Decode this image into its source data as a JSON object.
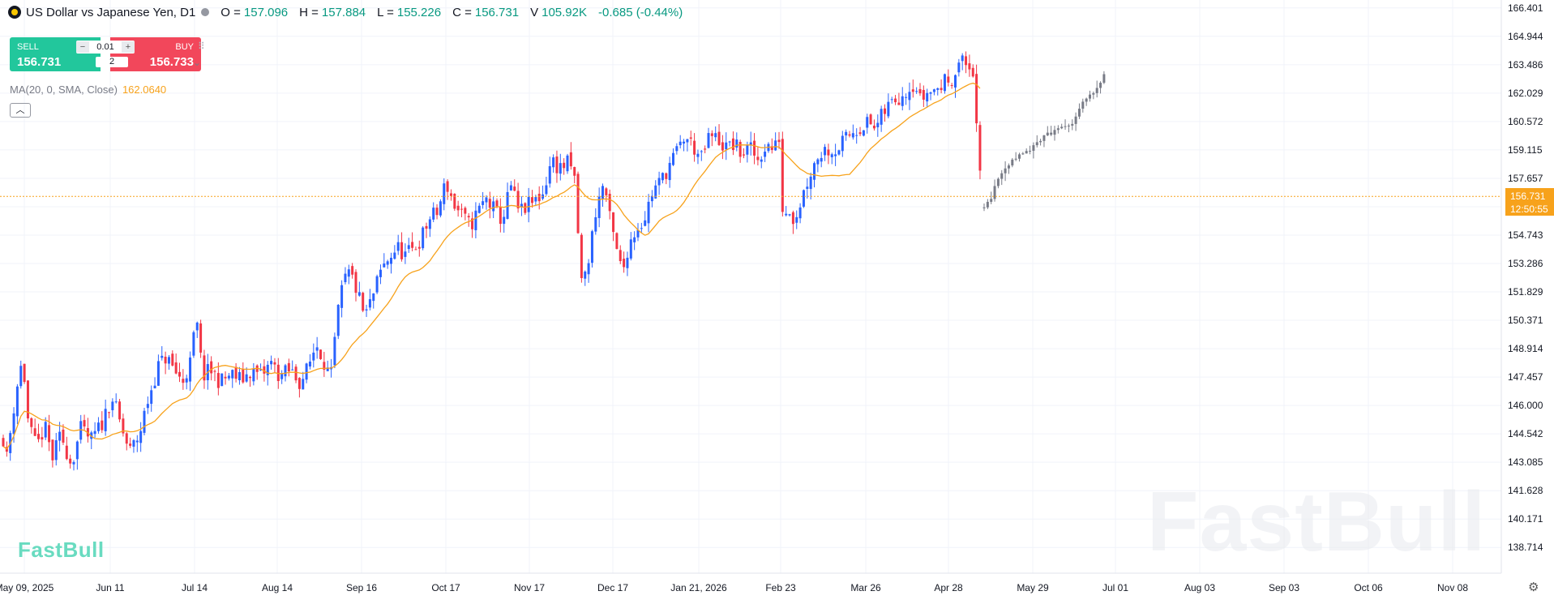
{
  "header": {
    "title": "US Dollar vs Japanese Yen, D1",
    "open_label": "O =",
    "open_value": "157.096",
    "high_label": "H =",
    "high_value": "157.884",
    "low_label": "L =",
    "low_value": "155.226",
    "close_label": "C =",
    "close_value": "156.731",
    "volume_label": "V",
    "volume_value": "105.92K",
    "change": "-0.685 (-0.44%)",
    "logo_icon": "usd-jpy-flag-icon",
    "status_icon": "market-status-dot-icon"
  },
  "trade_panel": {
    "sell_label": "SELL",
    "sell_price": "156.731",
    "buy_label": "BUY",
    "buy_price": "156.733",
    "lot_size": "0.01",
    "minus": "−",
    "plus": "+",
    "quantity": "2",
    "sell_color": "#22c79c",
    "buy_color": "#f2475b"
  },
  "indicator": {
    "label": "MA(20, 0, SMA, Close)",
    "value": "162.0640",
    "color": "#f7a21b",
    "collapse_icon": "chevron-up-icon"
  },
  "brand": {
    "corner_logo": "FastBull",
    "watermark": "FastBull"
  },
  "price_badge": {
    "price": "156.731",
    "countdown": "12:50:55",
    "color": "#f7a21b"
  },
  "colors": {
    "up": "#2962ff",
    "down": "#f23645",
    "projection": "#787b86",
    "ma": "#f7a21b",
    "grid": "#f0f3fa"
  },
  "chart_data": {
    "type": "candlestick",
    "symbol": "USDJPY",
    "timeframe": "D1",
    "y_axis_ticks": [
      "166.401",
      "164.944",
      "163.486",
      "162.029",
      "160.572",
      "159.115",
      "157.657",
      "156.200",
      "154.743",
      "153.286",
      "151.829",
      "150.371",
      "148.914",
      "147.457",
      "146.000",
      "144.542",
      "143.085",
      "141.628",
      "140.171",
      "138.714"
    ],
    "y_axis_hidden_tick": "156.200",
    "ylim": [
      137.6,
      166.6
    ],
    "x_axis_ticks": [
      "May 09, 2025",
      "Jun 11",
      "Jul 14",
      "Aug 14",
      "Sep 16",
      "Oct 17",
      "Nov 17",
      "Dec 17",
      "Jan 21, 2026",
      "Feb 23",
      "Mar 26",
      "Apr 28",
      "May 29",
      "Jul 01",
      "Aug 03",
      "Sep 03",
      "Oct 06",
      "Nov 08"
    ],
    "current_price": 156.731,
    "ma_period": 20,
    "close_path": [
      [
        0,
        145.5
      ],
      [
        8,
        143.2
      ],
      [
        20,
        146.8
      ],
      [
        28,
        148.4
      ],
      [
        35,
        145.0
      ],
      [
        45,
        143.8
      ],
      [
        55,
        144.9
      ],
      [
        65,
        143.3
      ],
      [
        75,
        144.5
      ],
      [
        88,
        143.0
      ],
      [
        100,
        144.8
      ],
      [
        112,
        144.2
      ],
      [
        125,
        145.0
      ],
      [
        138,
        146.5
      ],
      [
        150,
        144.8
      ],
      [
        160,
        143.6
      ],
      [
        172,
        144.5
      ],
      [
        182,
        146.2
      ],
      [
        195,
        148.0
      ],
      [
        205,
        148.5
      ],
      [
        215,
        147.8
      ],
      [
        225,
        147.2
      ],
      [
        235,
        148.2
      ],
      [
        242,
        150.5
      ],
      [
        250,
        147.5
      ],
      [
        260,
        147.8
      ],
      [
        272,
        147.2
      ],
      [
        285,
        147.6
      ],
      [
        298,
        147.3
      ],
      [
        310,
        147.8
      ],
      [
        322,
        147.5
      ],
      [
        335,
        148.2
      ],
      [
        345,
        147.5
      ],
      [
        358,
        147.8
      ],
      [
        370,
        147.2
      ],
      [
        380,
        147.9
      ],
      [
        390,
        149.2
      ],
      [
        398,
        148.5
      ],
      [
        408,
        147.3
      ],
      [
        416,
        150.5
      ],
      [
        424,
        152.4
      ],
      [
        432,
        152.8
      ],
      [
        440,
        151.9
      ],
      [
        450,
        150.5
      ],
      [
        460,
        151.6
      ],
      [
        470,
        152.9
      ],
      [
        480,
        153.6
      ],
      [
        490,
        154.1
      ],
      [
        500,
        153.7
      ],
      [
        510,
        154.0
      ],
      [
        520,
        154.6
      ],
      [
        530,
        155.6
      ],
      [
        540,
        155.9
      ],
      [
        550,
        157.5
      ],
      [
        560,
        156.3
      ],
      [
        570,
        155.7
      ],
      [
        580,
        155.2
      ],
      [
        590,
        156.0
      ],
      [
        600,
        156.6
      ],
      [
        610,
        156.0
      ],
      [
        620,
        155.5
      ],
      [
        630,
        157.3
      ],
      [
        640,
        155.9
      ],
      [
        650,
        156.2
      ],
      [
        660,
        156.5
      ],
      [
        670,
        156.9
      ],
      [
        680,
        158.6
      ],
      [
        690,
        158.2
      ],
      [
        700,
        158.4
      ],
      [
        708,
        158.0
      ],
      [
        712,
        155.5
      ],
      [
        718,
        152.0
      ],
      [
        726,
        153.5
      ],
      [
        735,
        156.0
      ],
      [
        745,
        157.5
      ],
      [
        752,
        155.6
      ],
      [
        760,
        154.0
      ],
      [
        768,
        152.8
      ],
      [
        775,
        154.2
      ],
      [
        785,
        155.1
      ],
      [
        795,
        155.6
      ],
      [
        805,
        157.0
      ],
      [
        815,
        157.5
      ],
      [
        825,
        158.3
      ],
      [
        835,
        159.0
      ],
      [
        845,
        159.8
      ],
      [
        855,
        159.3
      ],
      [
        865,
        158.6
      ],
      [
        875,
        159.8
      ],
      [
        885,
        159.7
      ],
      [
        895,
        159.2
      ],
      [
        905,
        159.4
      ],
      [
        915,
        158.9
      ],
      [
        925,
        159.2
      ],
      [
        935,
        158.6
      ],
      [
        945,
        159.4
      ],
      [
        955,
        159.1
      ],
      [
        962,
        159.9
      ],
      [
        966,
        155.3
      ],
      [
        972,
        156.4
      ],
      [
        980,
        155.5
      ],
      [
        990,
        156.8
      ],
      [
        1000,
        158.0
      ],
      [
        1010,
        158.9
      ],
      [
        1020,
        159.2
      ],
      [
        1030,
        159.1
      ],
      [
        1040,
        159.5
      ],
      [
        1050,
        160.0
      ],
      [
        1060,
        160.3
      ],
      [
        1070,
        160.5
      ],
      [
        1080,
        160.2
      ],
      [
        1090,
        161.0
      ],
      [
        1100,
        161.6
      ],
      [
        1110,
        161.9
      ],
      [
        1120,
        162.3
      ],
      [
        1128,
        162.6
      ],
      [
        1135,
        161.7
      ],
      [
        1145,
        162.1
      ],
      [
        1155,
        162.2
      ],
      [
        1165,
        162.6
      ],
      [
        1175,
        162.9
      ],
      [
        1185,
        163.7
      ],
      [
        1195,
        163.4
      ],
      [
        1202,
        163.1
      ],
      [
        1206,
        158.5
      ],
      [
        1212,
        156.7
      ]
    ],
    "projection_path": [
      [
        1212,
        156.0
      ],
      [
        1222,
        156.6
      ],
      [
        1232,
        157.8
      ],
      [
        1242,
        158.3
      ],
      [
        1252,
        158.7
      ],
      [
        1262,
        158.9
      ],
      [
        1272,
        159.2
      ],
      [
        1282,
        159.5
      ],
      [
        1292,
        159.9
      ],
      [
        1302,
        160.1
      ],
      [
        1312,
        160.3
      ],
      [
        1322,
        160.5
      ],
      [
        1332,
        161.3
      ],
      [
        1342,
        161.8
      ],
      [
        1352,
        162.1
      ],
      [
        1362,
        163.0
      ]
    ]
  }
}
